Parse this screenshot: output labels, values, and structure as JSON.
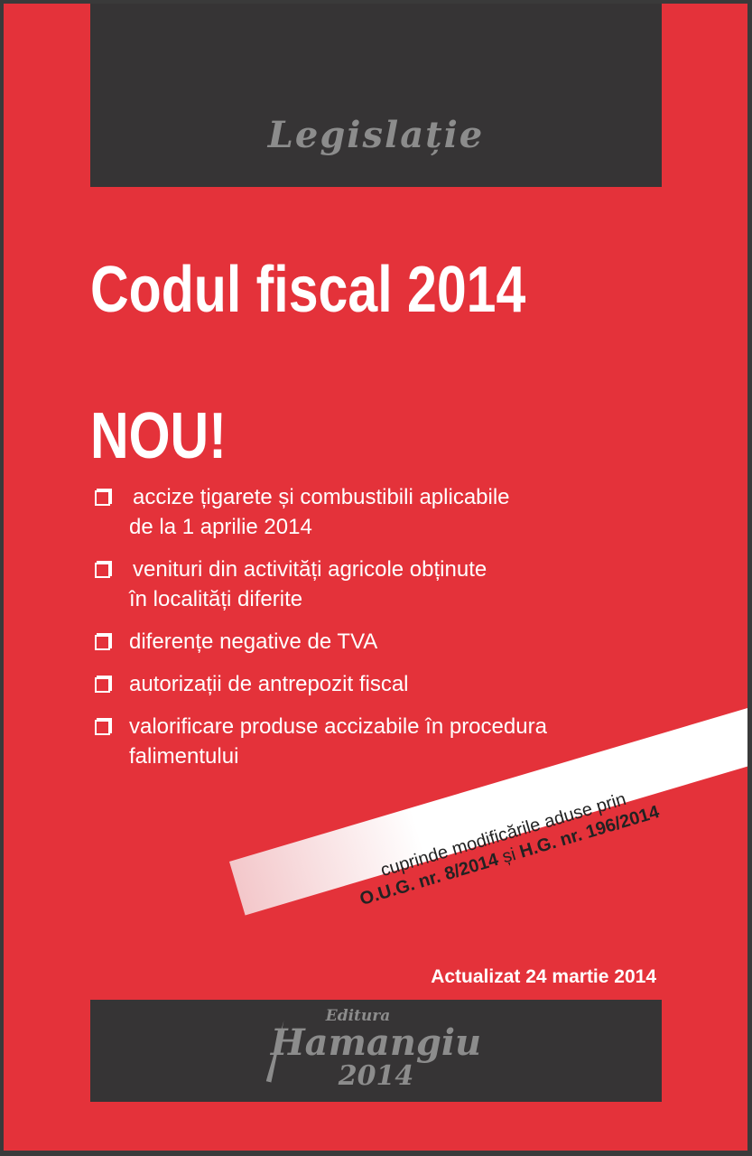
{
  "series_label": "Legislație",
  "title": "Codul fiscal 2014",
  "new_label": "NOU!",
  "items": [
    {
      "lines": [
        "accize țigarete și combustibili aplicabile",
        "de la 1 aprilie 2014"
      ]
    },
    {
      "lines": [
        "venituri din activități agricole obținute",
        "în localități diferite"
      ]
    },
    {
      "lines": [
        "diferențe negative de TVA"
      ]
    },
    {
      "lines": [
        "autorizații de antrepozit fiscal"
      ]
    },
    {
      "lines": [
        "valorificare produse accizabile în procedura",
        "falimentului"
      ]
    }
  ],
  "banner": {
    "line1": "cuprinde modificările aduse prin",
    "law1": "O.U.G. nr. 8/2014",
    "conj": "și",
    "law2": "H.G. nr. 196/2014"
  },
  "updated": "Actualizat 24 martie 2014",
  "publisher": {
    "prefix": "Editura",
    "name": "Hamangiu",
    "year": "2014"
  },
  "colors": {
    "background": "#e4323a",
    "band": "#363435",
    "border": "#3a3a3a",
    "logo_text": "#8c8c8c"
  }
}
